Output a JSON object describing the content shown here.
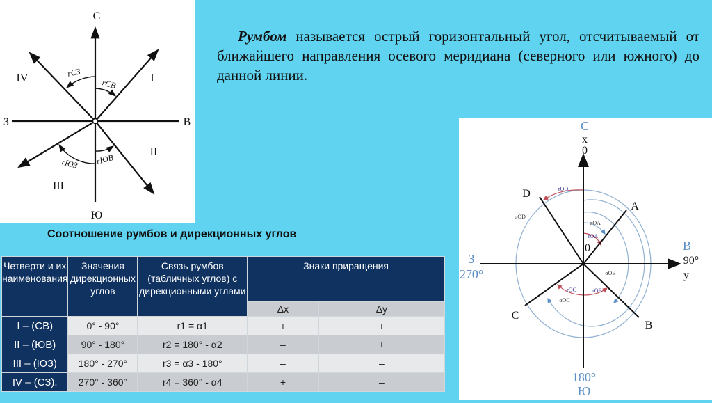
{
  "definition": {
    "term": "Румбом",
    "text": " называется острый горизонтальный угол, отсчитываемый от ближайшего направления осевого меридиана (северного или южного) до данной линии."
  },
  "left_diagram": {
    "north": "С",
    "south": "Ю",
    "west": "З",
    "east": "В",
    "quadrants": [
      "I",
      "II",
      "III",
      "IV"
    ],
    "angles": {
      "cv": "rСВ",
      "cz": "rСЗ",
      "yuv": "rЮВ",
      "yuz": "rЮЗ"
    }
  },
  "table_title": "Соотношение румбов и дирекционных углов",
  "table": {
    "headers": [
      "Четверти и их наименования",
      "Значения дирекционных углов",
      "Связь румбов (табличных углов) с дирекционными углами",
      "Знаки приращения"
    ],
    "subheaders": [
      "Δx",
      "Δy"
    ],
    "rows": [
      {
        "quarter": "I – (СВ)",
        "range": "0° - 90°",
        "relation": "r1 = α1",
        "dx": "+",
        "dy": "+"
      },
      {
        "quarter": "II – (ЮВ)",
        "range": "90° - 180°",
        "relation": "r2 = 180° - α2",
        "dx": "–",
        "dy": "+"
      },
      {
        "quarter": "III – (ЮЗ)",
        "range": "180° - 270°",
        "relation": "r3 = α3 - 180°",
        "dx": "–",
        "dy": "–"
      },
      {
        "quarter": "IV – (СЗ).",
        "range": "270° - 360°",
        "relation": "r4 = 360° - α4",
        "dx": "+",
        "dy": "–"
      }
    ]
  },
  "right_diagram": {
    "north": "С",
    "x_axis": "x",
    "zero": "0",
    "east": "В",
    "east_deg": "90°",
    "y_axis": "y",
    "west": "З",
    "west_deg": "270°",
    "south_deg": "180°",
    "south": "Ю",
    "origin": "0",
    "points": [
      "A",
      "B",
      "C",
      "D"
    ],
    "angles": [
      "αOA",
      "rOA",
      "αOB",
      "rOB",
      "αOC",
      "rOC",
      "αOD",
      "rOD"
    ],
    "colors": {
      "blue_labels": "#5b8ec4",
      "arc_blue": "#8fb0d0",
      "arc_red": "#c0505a"
    }
  },
  "colors": {
    "background": "#5fd3ef",
    "table_header": "#0f3260"
  }
}
